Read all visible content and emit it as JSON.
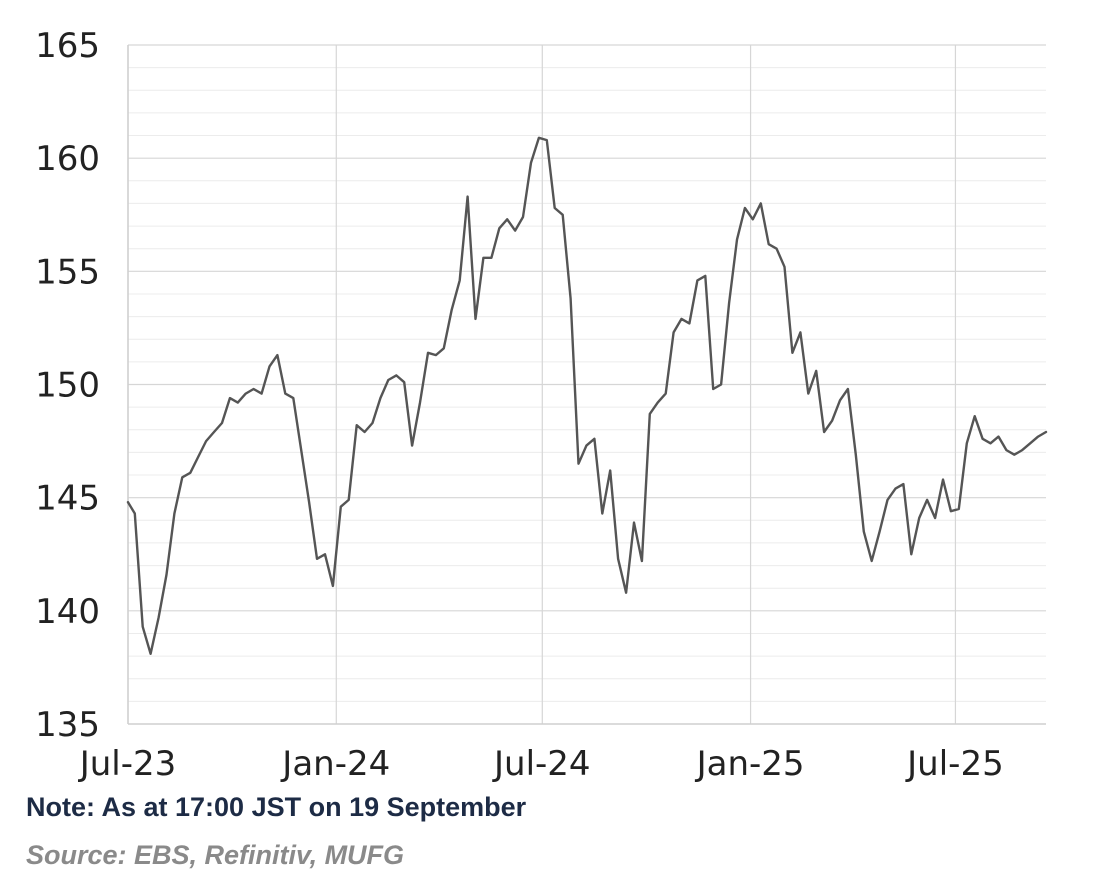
{
  "chart_data": {
    "type": "line",
    "title": "",
    "xlabel": "",
    "ylabel": "",
    "ylim": [
      135,
      165
    ],
    "xlim": [
      "2023-07-01",
      "2025-09-19"
    ],
    "y_ticks": [
      "135",
      "140",
      "145",
      "150",
      "155",
      "160",
      "165"
    ],
    "x_ticks": [
      {
        "label": "Jul-23",
        "date": "2023-07-01"
      },
      {
        "label": "Jan-24",
        "date": "2024-01-01"
      },
      {
        "label": "Jul-24",
        "date": "2024-07-01"
      },
      {
        "label": "Jan-25",
        "date": "2025-01-01"
      },
      {
        "label": "Jul-25",
        "date": "2025-07-01"
      }
    ],
    "grid": true,
    "line_color": "#555555",
    "series": [
      {
        "points": [
          [
            "2023-07-01",
            144.8
          ],
          [
            "2023-07-07",
            144.3
          ],
          [
            "2023-07-14",
            139.3
          ],
          [
            "2023-07-21",
            138.1
          ],
          [
            "2023-07-28",
            139.7
          ],
          [
            "2023-08-04",
            141.6
          ],
          [
            "2023-08-11",
            144.3
          ],
          [
            "2023-08-18",
            145.9
          ],
          [
            "2023-08-25",
            146.1
          ],
          [
            "2023-09-01",
            146.8
          ],
          [
            "2023-09-08",
            147.5
          ],
          [
            "2023-09-15",
            147.9
          ],
          [
            "2023-09-22",
            148.3
          ],
          [
            "2023-09-29",
            149.4
          ],
          [
            "2023-10-06",
            149.2
          ],
          [
            "2023-10-13",
            149.6
          ],
          [
            "2023-10-20",
            149.8
          ],
          [
            "2023-10-27",
            149.6
          ],
          [
            "2023-11-03",
            150.8
          ],
          [
            "2023-11-10",
            151.3
          ],
          [
            "2023-11-17",
            149.6
          ],
          [
            "2023-11-24",
            149.4
          ],
          [
            "2023-12-01",
            147.1
          ],
          [
            "2023-12-08",
            144.8
          ],
          [
            "2023-12-15",
            142.3
          ],
          [
            "2023-12-22",
            142.5
          ],
          [
            "2023-12-29",
            141.1
          ],
          [
            "2024-01-05",
            144.6
          ],
          [
            "2024-01-12",
            144.9
          ],
          [
            "2024-01-19",
            148.2
          ],
          [
            "2024-01-26",
            147.9
          ],
          [
            "2024-02-02",
            148.3
          ],
          [
            "2024-02-09",
            149.4
          ],
          [
            "2024-02-16",
            150.2
          ],
          [
            "2024-02-23",
            150.4
          ],
          [
            "2024-03-01",
            150.1
          ],
          [
            "2024-03-08",
            147.3
          ],
          [
            "2024-03-15",
            149.2
          ],
          [
            "2024-03-22",
            151.4
          ],
          [
            "2024-03-29",
            151.3
          ],
          [
            "2024-04-05",
            151.6
          ],
          [
            "2024-04-12",
            153.3
          ],
          [
            "2024-04-19",
            154.6
          ],
          [
            "2024-04-26",
            158.3
          ],
          [
            "2024-05-03",
            152.9
          ],
          [
            "2024-05-10",
            155.6
          ],
          [
            "2024-05-17",
            155.6
          ],
          [
            "2024-05-24",
            156.9
          ],
          [
            "2024-05-31",
            157.3
          ],
          [
            "2024-06-07",
            156.8
          ],
          [
            "2024-06-14",
            157.4
          ],
          [
            "2024-06-21",
            159.8
          ],
          [
            "2024-06-28",
            160.9
          ],
          [
            "2024-07-05",
            160.8
          ],
          [
            "2024-07-12",
            157.8
          ],
          [
            "2024-07-19",
            157.5
          ],
          [
            "2024-07-26",
            153.8
          ],
          [
            "2024-08-02",
            146.5
          ],
          [
            "2024-08-09",
            147.3
          ],
          [
            "2024-08-16",
            147.6
          ],
          [
            "2024-08-23",
            144.3
          ],
          [
            "2024-08-30",
            146.2
          ],
          [
            "2024-09-06",
            142.3
          ],
          [
            "2024-09-13",
            140.8
          ],
          [
            "2024-09-20",
            143.9
          ],
          [
            "2024-09-27",
            142.2
          ],
          [
            "2024-10-04",
            148.7
          ],
          [
            "2024-10-11",
            149.2
          ],
          [
            "2024-10-18",
            149.6
          ],
          [
            "2024-10-25",
            152.3
          ],
          [
            "2024-11-01",
            152.9
          ],
          [
            "2024-11-08",
            152.7
          ],
          [
            "2024-11-15",
            154.6
          ],
          [
            "2024-11-22",
            154.8
          ],
          [
            "2024-11-29",
            149.8
          ],
          [
            "2024-12-06",
            150.0
          ],
          [
            "2024-12-13",
            153.6
          ],
          [
            "2024-12-20",
            156.4
          ],
          [
            "2024-12-27",
            157.8
          ],
          [
            "2025-01-03",
            157.3
          ],
          [
            "2025-01-10",
            158.0
          ],
          [
            "2025-01-17",
            156.2
          ],
          [
            "2025-01-24",
            156.0
          ],
          [
            "2025-01-31",
            155.2
          ],
          [
            "2025-02-07",
            151.4
          ],
          [
            "2025-02-14",
            152.3
          ],
          [
            "2025-02-21",
            149.6
          ],
          [
            "2025-02-28",
            150.6
          ],
          [
            "2025-03-07",
            147.9
          ],
          [
            "2025-03-14",
            148.4
          ],
          [
            "2025-03-21",
            149.3
          ],
          [
            "2025-03-28",
            149.8
          ],
          [
            "2025-04-04",
            146.9
          ],
          [
            "2025-04-11",
            143.5
          ],
          [
            "2025-04-18",
            142.2
          ],
          [
            "2025-04-25",
            143.5
          ],
          [
            "2025-05-02",
            144.9
          ],
          [
            "2025-05-09",
            145.4
          ],
          [
            "2025-05-16",
            145.6
          ],
          [
            "2025-05-23",
            142.5
          ],
          [
            "2025-05-30",
            144.1
          ],
          [
            "2025-06-06",
            144.9
          ],
          [
            "2025-06-13",
            144.1
          ],
          [
            "2025-06-20",
            145.8
          ],
          [
            "2025-06-27",
            144.4
          ],
          [
            "2025-07-04",
            144.5
          ],
          [
            "2025-07-11",
            147.4
          ],
          [
            "2025-07-18",
            148.6
          ],
          [
            "2025-07-25",
            147.6
          ],
          [
            "2025-08-01",
            147.4
          ],
          [
            "2025-08-08",
            147.7
          ],
          [
            "2025-08-15",
            147.1
          ],
          [
            "2025-08-22",
            146.9
          ],
          [
            "2025-08-29",
            147.1
          ],
          [
            "2025-09-05",
            147.4
          ],
          [
            "2025-09-12",
            147.7
          ],
          [
            "2025-09-19",
            147.9
          ]
        ]
      }
    ]
  },
  "note": "Note: As at 17:00 JST on 19 September",
  "source": "Source: EBS, Refinitiv, MUFG"
}
